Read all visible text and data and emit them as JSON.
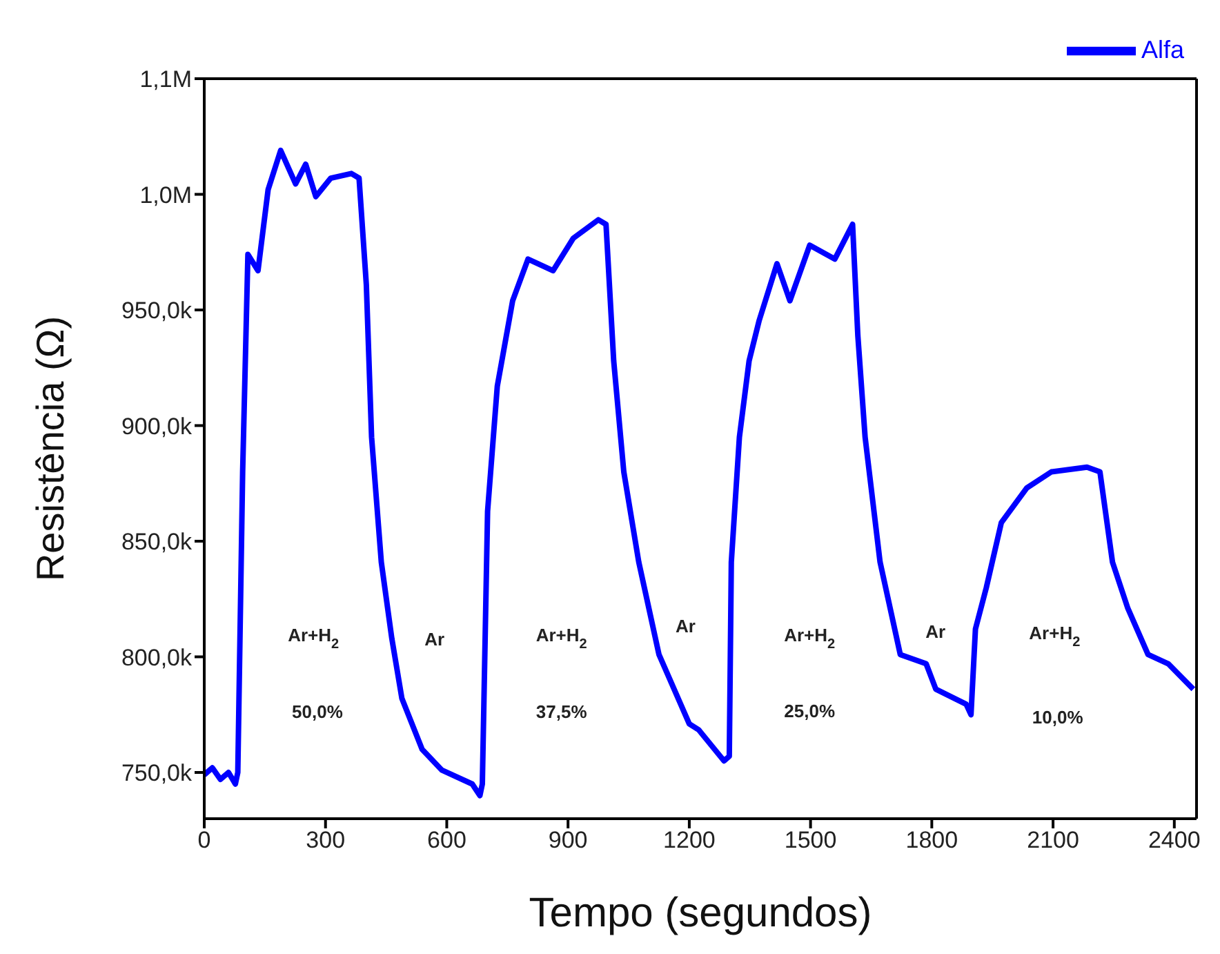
{
  "chart_data": {
    "type": "line",
    "xlabel": "Tempo (segundos)",
    "ylabel": "Resistência (Ω)",
    "xlim": [
      0,
      2455
    ],
    "xticks": [
      0,
      300,
      600,
      900,
      1200,
      1500,
      1800,
      2100,
      2400
    ],
    "ylim": [
      730000,
      1050000
    ],
    "yticks": [
      {
        "value": 750000,
        "label": "750,0k"
      },
      {
        "value": 800000,
        "label": "800,0k"
      },
      {
        "value": 850000,
        "label": "850,0k"
      },
      {
        "value": 900000,
        "label": "900,0k"
      },
      {
        "value": 950000,
        "label": "950,0k"
      },
      {
        "value": 1000000,
        "label": "1,0M"
      },
      {
        "value": 1050000,
        "label": "1,1M"
      }
    ],
    "x": [
      0,
      20,
      40,
      60,
      77,
      83,
      95,
      108,
      133,
      158,
      189,
      226,
      251,
      276,
      313,
      364,
      383,
      401,
      414,
      438,
      464,
      489,
      539,
      588,
      663,
      682,
      688,
      701,
      725,
      763,
      801,
      863,
      913,
      975,
      994,
      1013,
      1038,
      1075,
      1125,
      1200,
      1223,
      1286,
      1299,
      1304,
      1324,
      1348,
      1373,
      1417,
      1449,
      1498,
      1560,
      1604,
      1617,
      1635,
      1672,
      1722,
      1786,
      1810,
      1885,
      1897,
      1908,
      1935,
      1972,
      2035,
      2096,
      2184,
      2216,
      2247,
      2285,
      2335,
      2385,
      2447
    ],
    "series": [
      {
        "name": "Alfa",
        "color": "#0000ff",
        "values": [
          749000,
          752000,
          747000,
          750000,
          745000,
          750000,
          880000,
          974000,
          967000,
          1002000,
          1019000,
          1004500,
          1013000,
          999000,
          1007000,
          1009000,
          1007000,
          961000,
          895000,
          841000,
          808000,
          782000,
          760000,
          751000,
          745000,
          740000,
          745000,
          863000,
          917000,
          954000,
          972000,
          967000,
          981000,
          989000,
          987000,
          928000,
          880000,
          841000,
          801000,
          771000,
          768500,
          755000,
          757000,
          841000,
          895000,
          928000,
          945500,
          970000,
          954000,
          978000,
          972000,
          987000,
          939000,
          895000,
          841000,
          801000,
          797000,
          786000,
          779500,
          775000,
          812000,
          830000,
          858000,
          873000,
          880000,
          882000,
          880000,
          841000,
          821000,
          801000,
          797000,
          786000
        ]
      }
    ],
    "annotations": [
      "Ar+H$_{2}$",
      "50,0%",
      "Ar",
      "Ar+H$_{2}$",
      "37,5%",
      "Ar",
      "Ar+H$_{2}$",
      "25,0%",
      "Ar",
      "Ar+H$_{2}$",
      "10,0%"
    ],
    "legend": "top right",
    "marker": "none",
    "line_style": "solid",
    "grid": false
  }
}
